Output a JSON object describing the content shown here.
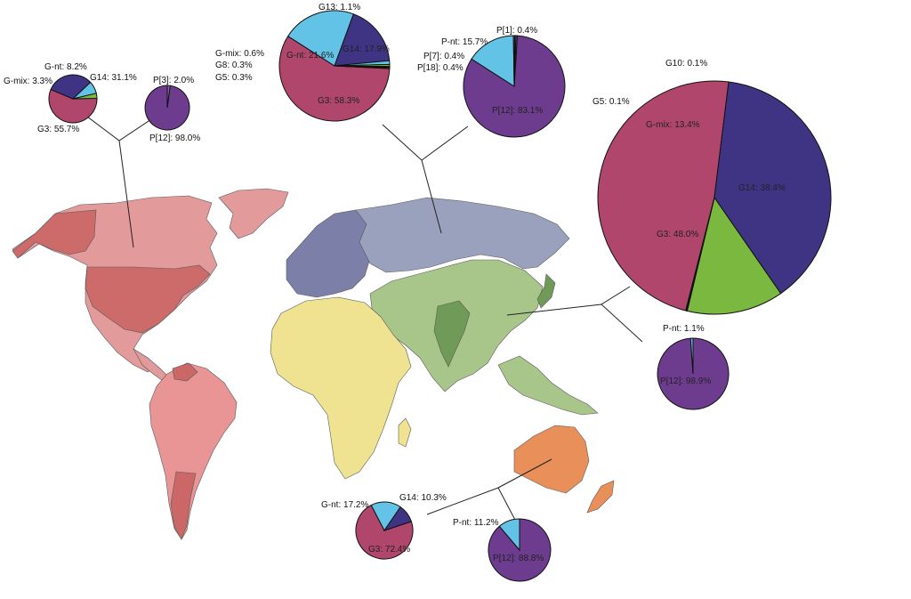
{
  "colors": {
    "G3": "#b0466b",
    "G14": "#3f3483",
    "G-nt": "#62c3e6",
    "G-mix": "#7ab840",
    "G13": "#62c3e6",
    "minor": "#9a9a9a",
    "P12": "#6e3c8e",
    "P-nt": "#62c3e6",
    "P-minor": "#8a6aa8",
    "north_america": "#e39a9a",
    "north_america_dark": "#cd6a6a",
    "south_america": "#ea9595",
    "south_america_dark": "#cc6767",
    "europe": "#7c7fa8",
    "russia": "#9aa1bd",
    "asia": "#a9c68a",
    "asia_dark": "#6f9a58",
    "africa": "#efe392",
    "australia": "#e98f5a"
  },
  "regions": [
    {
      "region": "North America",
      "genotype_g": [
        {
          "label": "G3: 55.7%",
          "key": "G3",
          "value": 55.7
        },
        {
          "label": "G14: 31.1%",
          "key": "G14",
          "value": 31.1
        },
        {
          "label": "G-nt: 8.2%",
          "key": "G-nt",
          "value": 8.2
        },
        {
          "label": "G-mix: 3.3%",
          "key": "G-mix",
          "value": 3.3
        }
      ],
      "genotype_p": [
        {
          "label": "P[12]: 98.0%",
          "key": "P12",
          "value": 98.0
        },
        {
          "label": "P[3]: 2.0%",
          "key": "P-minor",
          "value": 2.0
        }
      ]
    },
    {
      "region": "Europe / Russia",
      "genotype_g": [
        {
          "label": "G3: 58.3%",
          "key": "G3",
          "value": 58.3
        },
        {
          "label": "G-nt: 21.6%",
          "key": "G-nt",
          "value": 21.6
        },
        {
          "label": "G14: 17.9%",
          "key": "G14",
          "value": 17.9
        },
        {
          "label": "G13: 1.1%",
          "key": "G13",
          "value": 1.1
        },
        {
          "label": "G-mix: 0.6%",
          "key": "G-mix",
          "value": 0.6
        },
        {
          "label": "G8: 0.3%",
          "key": "minor",
          "value": 0.3
        },
        {
          "label": "G5: 0.3%",
          "key": "minor",
          "value": 0.3
        }
      ],
      "genotype_p": [
        {
          "label": "P[12]: 83.1%",
          "key": "P12",
          "value": 83.1
        },
        {
          "label": "P-nt: 15.7%",
          "key": "P-nt",
          "value": 15.7
        },
        {
          "label": "P[1]: 0.4%",
          "key": "P-minor",
          "value": 0.4
        },
        {
          "label": "P[7]: 0.4%",
          "key": "P-minor",
          "value": 0.4
        },
        {
          "label": "P[18]: 0.4%",
          "key": "P-minor",
          "value": 0.4
        }
      ]
    },
    {
      "region": "Asia",
      "genotype_g": [
        {
          "label": "G3: 48.0%",
          "key": "G3",
          "value": 48.0
        },
        {
          "label": "G14: 38.4%",
          "key": "G14",
          "value": 38.4
        },
        {
          "label": "G-mix: 13.4%",
          "key": "G-mix",
          "value": 13.4
        },
        {
          "label": "G10: 0.1%",
          "key": "minor",
          "value": 0.1
        },
        {
          "label": "G5: 0.1%",
          "key": "minor",
          "value": 0.1
        }
      ],
      "genotype_p": [
        {
          "label": "P[12]: 98.9%",
          "key": "P12",
          "value": 98.9
        },
        {
          "label": "P-nt: 1.1%",
          "key": "P-nt",
          "value": 1.1
        }
      ]
    },
    {
      "region": "Australia",
      "genotype_g": [
        {
          "label": "G3: 72.4%",
          "key": "G3",
          "value": 72.4
        },
        {
          "label": "G-nt: 17.2%",
          "key": "G-nt",
          "value": 17.2
        },
        {
          "label": "G14: 10.3%",
          "key": "G14",
          "value": 10.3
        }
      ],
      "genotype_p": [
        {
          "label": "P[12]: 88.8%",
          "key": "P12",
          "value": 88.8
        },
        {
          "label": "P-nt: 11.2%",
          "key": "P-nt",
          "value": 11.2
        }
      ]
    }
  ]
}
